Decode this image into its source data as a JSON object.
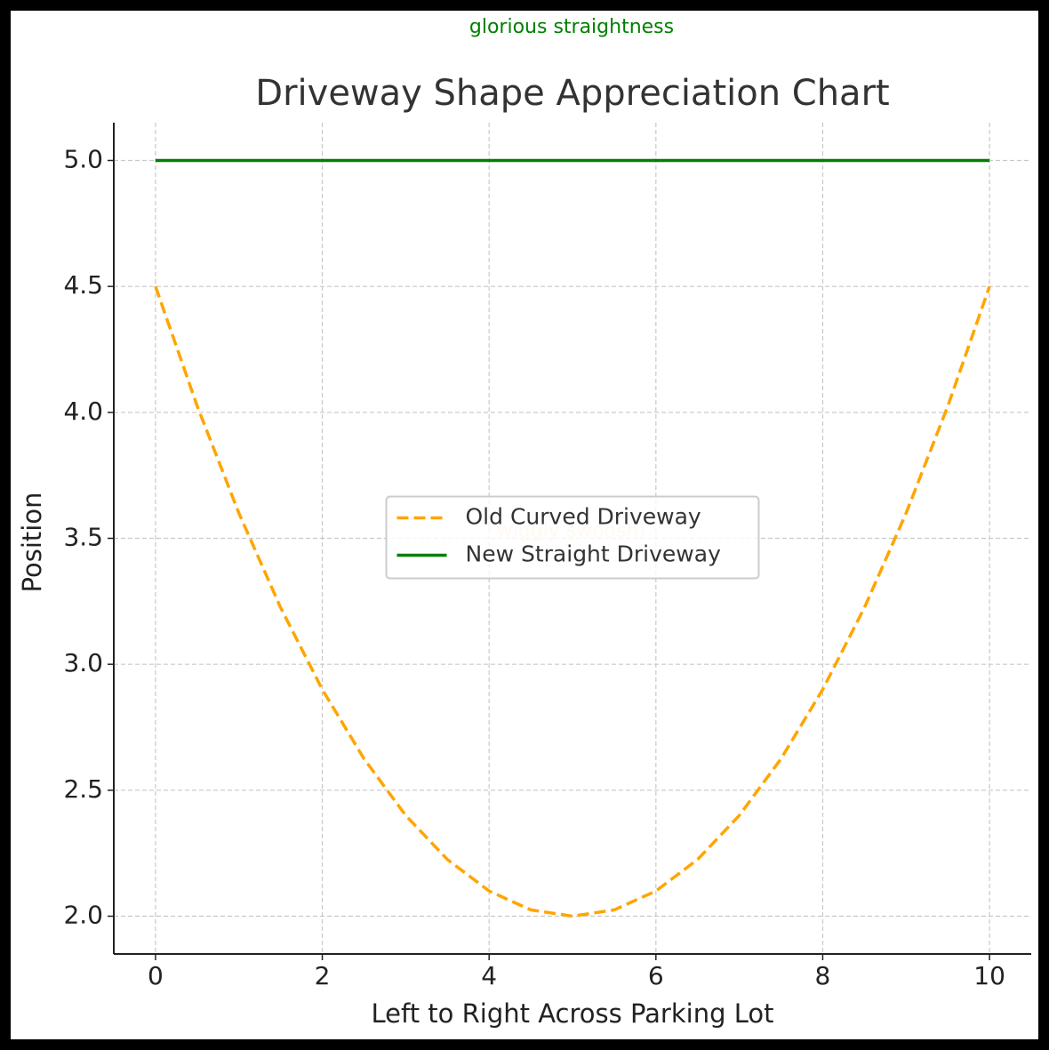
{
  "chart_data": {
    "type": "line",
    "title": "Driveway Shape Appreciation Chart",
    "x_label": "Left to Right Across Parking Lot",
    "y_label": "Position",
    "x": [
      0,
      0.5,
      1,
      1.5,
      2,
      2.5,
      3,
      3.5,
      4,
      4.5,
      5,
      5.5,
      6,
      6.5,
      7,
      7.5,
      8,
      8.5,
      9,
      9.5,
      10
    ],
    "series": [
      {
        "name": "Old Curved Driveway",
        "color": "#ffa500",
        "linestyle": "dashed",
        "values": [
          4.5,
          4.025,
          3.6,
          3.225,
          2.9,
          2.625,
          2.4,
          2.225,
          2.1,
          2.025,
          2.0,
          2.025,
          2.1,
          2.225,
          2.4,
          2.625,
          2.9,
          3.225,
          3.6,
          4.025,
          4.5
        ]
      },
      {
        "name": "New Straight Driveway",
        "color": "#008000",
        "linestyle": "solid",
        "values": [
          5,
          5,
          5,
          5,
          5,
          5,
          5,
          5,
          5,
          5,
          5,
          5,
          5,
          5,
          5,
          5,
          5,
          5,
          5,
          5,
          5
        ]
      }
    ],
    "annotations": [
      {
        "text": "glorious straightness",
        "color": "#008000"
      },
      {
        "text": "wiggly swoosh!",
        "color": "#ffa500"
      }
    ],
    "xlim": [
      -0.5,
      10.5
    ],
    "xticks": [
      0,
      2,
      4,
      6,
      8,
      10
    ],
    "ylim": [
      1.85,
      5.15
    ],
    "yticks": [
      {
        "value": 2,
        "label": "2.0"
      },
      2.5,
      {
        "value": 3,
        "label": "3.0"
      },
      3.5,
      {
        "value": 4,
        "label": "4.0"
      },
      4.5,
      {
        "value": 5,
        "label": "5.0"
      }
    ],
    "grid": true,
    "legend": "center"
  }
}
